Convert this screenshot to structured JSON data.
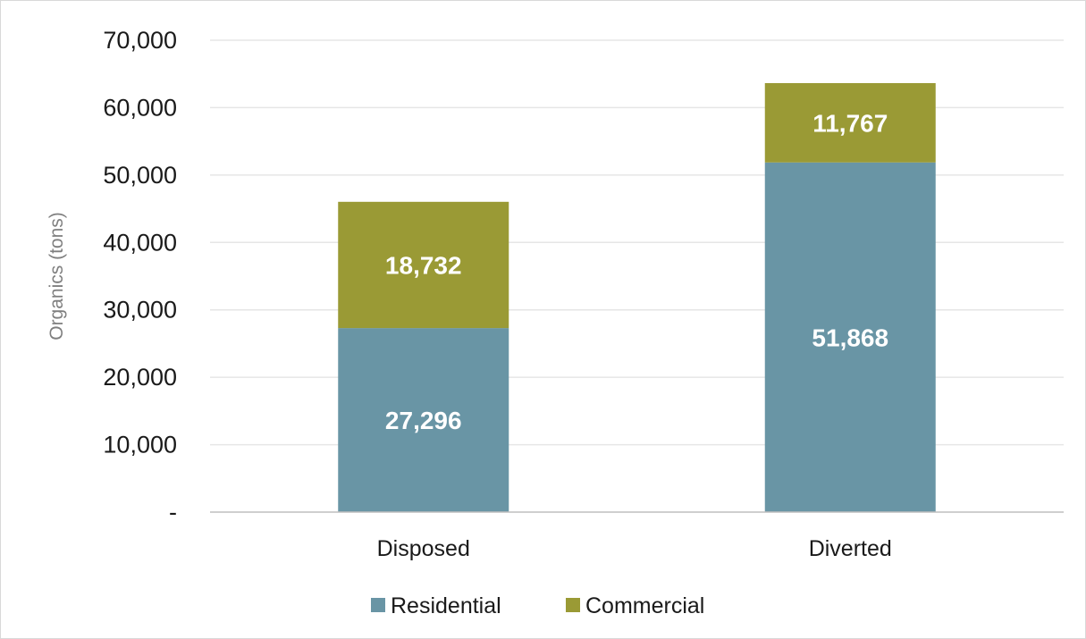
{
  "chart_data": {
    "type": "bar",
    "stacked": true,
    "categories": [
      "Disposed",
      "Diverted"
    ],
    "series": [
      {
        "name": "Residential",
        "values": [
          27296,
          51868
        ],
        "labels": [
          "27,296",
          "51,868"
        ],
        "color": "#6995a5"
      },
      {
        "name": "Commercial",
        "values": [
          18732,
          11767
        ],
        "labels": [
          "18,732",
          "11,767"
        ],
        "color": "#9a9a35"
      }
    ],
    "ylabel": "Organics (tons)",
    "xlabel": "",
    "ylim": [
      0,
      70000
    ],
    "yticks": [
      {
        "value": 0,
        "label": "-"
      },
      {
        "value": 10000,
        "label": "10,000"
      },
      {
        "value": 20000,
        "label": "20,000"
      },
      {
        "value": 30000,
        "label": "30,000"
      },
      {
        "value": 40000,
        "label": "40,000"
      },
      {
        "value": 50000,
        "label": "50,000"
      },
      {
        "value": 60000,
        "label": "60,000"
      },
      {
        "value": 70000,
        "label": "70,000"
      }
    ],
    "grid": true,
    "legend_position": "bottom"
  }
}
